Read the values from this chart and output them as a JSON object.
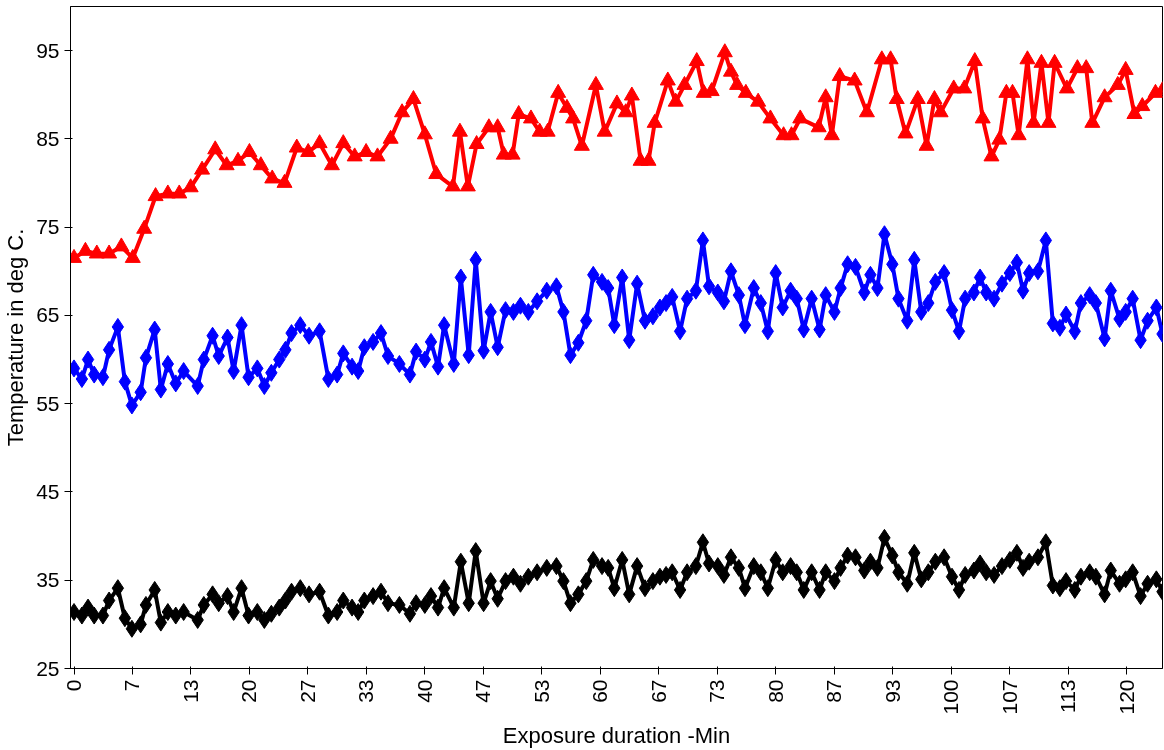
{
  "chart_data": {
    "type": "line",
    "xlabel": "Exposure duration -Min",
    "ylabel": "Temperature in deg C.",
    "xlim": [
      -0.4,
      124.1
    ],
    "ylim": [
      25,
      100
    ],
    "yticks": [
      25,
      35,
      45,
      55,
      65,
      75,
      85,
      95
    ],
    "xticks": [
      {
        "value": 0,
        "label": "0"
      },
      {
        "value": 6.667,
        "label": "7"
      },
      {
        "value": 13.333,
        "label": "13"
      },
      {
        "value": 20,
        "label": "20"
      },
      {
        "value": 26.667,
        "label": "27"
      },
      {
        "value": 33.333,
        "label": "33"
      },
      {
        "value": 40,
        "label": "40"
      },
      {
        "value": 46.667,
        "label": "47"
      },
      {
        "value": 53.333,
        "label": "53"
      },
      {
        "value": 60,
        "label": "60"
      },
      {
        "value": 66.667,
        "label": "67"
      },
      {
        "value": 73.333,
        "label": "73"
      },
      {
        "value": 80,
        "label": "80"
      },
      {
        "value": 86.667,
        "label": "87"
      },
      {
        "value": 93.333,
        "label": "93"
      },
      {
        "value": 100,
        "label": "100"
      },
      {
        "value": 106.667,
        "label": "107"
      },
      {
        "value": 113.333,
        "label": "113"
      },
      {
        "value": 120,
        "label": "120"
      }
    ],
    "grid": false,
    "line_style": "solid",
    "x": [
      0,
      0.9,
      1.6,
      2.3,
      3.3,
      4.0,
      5.0,
      5.8,
      6.6,
      7.6,
      8.2,
      9.2,
      9.9,
      10.7,
      11.6,
      12.5,
      14.1,
      14.8,
      15.8,
      16.5,
      17.5,
      18.2,
      19.1,
      19.9,
      20.9,
      21.7,
      22.5,
      23.4,
      24.1,
      24.8,
      25.8,
      26.8,
      28.0,
      29.0,
      30.0,
      30.7,
      31.7,
      32.4,
      33.1,
      34.1,
      35.0,
      35.8,
      37.1,
      38.3,
      39.0,
      40.0,
      40.7,
      41.5,
      42.2,
      43.3,
      44.1,
      45.0,
      45.8,
      46.7,
      47.5,
      48.3,
      49.2,
      50.1,
      50.9,
      51.8,
      52.8,
      53.9,
      55.0,
      55.8,
      56.6,
      57.5,
      58.4,
      59.2,
      60.2,
      60.9,
      61.6,
      62.5,
      63.3,
      64.2,
      65.1,
      66.0,
      66.8,
      67.5,
      68.2,
      69.1,
      69.9,
      70.9,
      71.7,
      72.4,
      73.4,
      74.1,
      74.9,
      75.8,
      76.5,
      77.5,
      78.3,
      79.1,
      80.0,
      80.8,
      81.7,
      82.4,
      83.2,
      84.1,
      85.0,
      85.7,
      86.7,
      87.4,
      88.2,
      89.1,
      90.1,
      90.8,
      91.6,
      92.4,
      93.3,
      94.0,
      95.0,
      95.8,
      96.6,
      97.4,
      98.2,
      99.2,
      100.1,
      100.9,
      101.6,
      102.6,
      103.3,
      104.0,
      104.9,
      105.8,
      106.7,
      107.5,
      108.2,
      108.9,
      109.9,
      110.8,
      111.6,
      112.4,
      113.1,
      114.1,
      114.8,
      115.8,
      116.5,
      117.5,
      118.2,
      119.2,
      119.9,
      120.7,
      121.6,
      122.4,
      123.4,
      124.1
    ],
    "series": [
      {
        "color": "#ff0000",
        "marker": "triangle",
        "x": [
          0,
          1.3,
          2.6,
          4.0,
          5.4,
          6.7,
          8.0,
          9.3,
          10.7,
          12.0,
          13.3,
          14.6,
          16.1,
          17.4,
          18.7,
          20.0,
          21.3,
          22.6,
          24.0,
          25.4,
          26.7,
          28.0,
          29.4,
          30.7,
          32.0,
          33.3,
          34.6,
          36.1,
          37.4,
          38.7,
          40.0,
          41.3,
          43.2,
          44.0,
          44.9,
          45.9,
          47.3,
          48.3,
          49.0,
          50.0,
          50.7,
          52.1,
          53.1,
          54.0,
          55.2,
          56.2,
          56.9,
          57.9,
          59.5,
          60.5,
          61.9,
          62.9,
          63.6,
          64.6,
          65.5,
          66.2,
          67.7,
          68.6,
          69.6,
          71.0,
          71.8,
          72.7,
          74.2,
          74.9,
          75.6,
          76.6,
          78.0,
          79.4,
          80.9,
          81.8,
          82.8,
          84.9,
          85.7,
          86.4,
          87.3,
          89.0,
          90.4,
          92.1,
          93.1,
          93.8,
          94.8,
          96.2,
          97.2,
          98.1,
          98.8,
          100.3,
          101.5,
          102.7,
          103.6,
          104.6,
          105.5,
          106.3,
          107.0,
          107.7,
          108.7,
          109.4,
          110.3,
          111.1,
          111.8,
          113.2,
          114.4,
          115.4,
          116.1,
          117.5,
          119.0,
          119.9,
          120.9,
          121.8,
          123.3,
          124.1
        ],
        "values": [
          71.5,
          72.3,
          72,
          72,
          72.8,
          71.5,
          74.8,
          78.5,
          78.8,
          78.8,
          79.5,
          81.5,
          83.8,
          82,
          82.5,
          83.5,
          82,
          80.5,
          80,
          84,
          83.5,
          84.5,
          82,
          84.5,
          83,
          83.5,
          83,
          85,
          88,
          89.5,
          85.5,
          81,
          79.6,
          85.8,
          79.6,
          84.4,
          86.3,
          86.3,
          83.2,
          83.2,
          87.8,
          87.3,
          85.8,
          85.8,
          90.2,
          88.5,
          87.3,
          84.2,
          91.1,
          85.8,
          89,
          88,
          89.9,
          82.5,
          82.5,
          86.8,
          91.6,
          89.2,
          91.1,
          93.8,
          90.2,
          90.4,
          94.8,
          92.6,
          91.1,
          90.2,
          89.2,
          87.3,
          85.4,
          85.4,
          87.3,
          86.3,
          89.7,
          85.4,
          92.1,
          91.6,
          88,
          94,
          94,
          89.5,
          85.6,
          89.5,
          84.2,
          89.5,
          88,
          90.7,
          90.7,
          93.8,
          87.3,
          83,
          84.9,
          90.2,
          90.2,
          85.4,
          94,
          86.8,
          93.6,
          86.8,
          93.6,
          90.7,
          93,
          93,
          86.8,
          89.7,
          91.1,
          92.8,
          87.8,
          88.7,
          90.2,
          90.5
        ]
      },
      {
        "color": "#0000ff",
        "marker": "diamond",
        "values": [
          59.0,
          57.8,
          60.0,
          58.3,
          58.0,
          61.1,
          63.7,
          57.5,
          54.8,
          56.3,
          60.2,
          63.4,
          56.6,
          59.5,
          57.3,
          58.7,
          57.0,
          60.0,
          62.7,
          60.4,
          62.5,
          58.7,
          63.9,
          58.0,
          59.0,
          57.0,
          58.5,
          60.0,
          61.1,
          63.0,
          63.9,
          62.7,
          63.2,
          57.8,
          58.3,
          60.7,
          59.2,
          58.7,
          61.4,
          62.0,
          63.0,
          60.4,
          59.5,
          58.3,
          60.9,
          60.0,
          62.0,
          59.2,
          63.9,
          59.5,
          69.3,
          60.5,
          71.3,
          61.0,
          65.4,
          61.4,
          65.6,
          65.4,
          66.1,
          65.4,
          66.6,
          67.8,
          68.3,
          65.4,
          60.5,
          61.9,
          64.4,
          69.6,
          68.8,
          68.1,
          63.9,
          69.3,
          62.2,
          68.6,
          64.4,
          64.9,
          65.9,
          66.4,
          67.1,
          63.2,
          66.9,
          67.8,
          73.5,
          68.3,
          67.6,
          66.6,
          70.0,
          67.3,
          63.9,
          68.1,
          66.4,
          63.2,
          69.8,
          65.9,
          67.8,
          66.9,
          63.4,
          66.9,
          63.4,
          67.3,
          65.4,
          68.1,
          70.8,
          70.5,
          67.6,
          69.6,
          68.1,
          74.2,
          70.8,
          66.9,
          64.4,
          71.3,
          65.4,
          66.4,
          68.8,
          69.8,
          65.6,
          63.2,
          66.9,
          67.6,
          69.3,
          67.6,
          66.9,
          68.6,
          69.8,
          71.0,
          67.8,
          69.8,
          70.0,
          73.5,
          64.1,
          63.6,
          65.1,
          63.2,
          66.4,
          67.3,
          66.4,
          62.4,
          67.8,
          64.6,
          65.4,
          66.9,
          62.2,
          64.4,
          65.9,
          62.9
        ]
      },
      {
        "color": "#000000",
        "marker": "diamond",
        "values": [
          31.4,
          31.0,
          31.9,
          31.0,
          31.0,
          32.7,
          34.1,
          30.7,
          29.5,
          30.0,
          32.2,
          33.9,
          30.2,
          31.4,
          31.0,
          31.4,
          30.5,
          32.2,
          33.4,
          32.4,
          33.2,
          31.4,
          34.1,
          31.0,
          31.4,
          30.5,
          31.2,
          31.9,
          32.7,
          33.7,
          34.1,
          33.4,
          33.7,
          31.0,
          31.4,
          32.7,
          31.9,
          31.4,
          32.7,
          33.2,
          33.7,
          32.4,
          32.2,
          31.2,
          32.4,
          32.2,
          33.2,
          31.9,
          34.1,
          31.9,
          37.1,
          32.4,
          38.3,
          32.4,
          34.9,
          32.9,
          34.9,
          35.4,
          34.6,
          35.4,
          35.9,
          36.4,
          36.6,
          34.9,
          32.4,
          33.4,
          34.9,
          37.3,
          36.6,
          36.4,
          34.1,
          37.3,
          33.4,
          36.6,
          34.1,
          34.9,
          35.4,
          35.6,
          35.9,
          33.9,
          35.9,
          36.6,
          39.3,
          36.9,
          36.6,
          35.6,
          37.6,
          36.4,
          34.1,
          36.6,
          35.9,
          34.1,
          37.3,
          35.9,
          36.6,
          35.9,
          33.9,
          35.9,
          33.9,
          35.9,
          34.9,
          36.4,
          37.8,
          37.6,
          36.1,
          37.1,
          36.4,
          39.8,
          37.8,
          35.9,
          34.6,
          38.1,
          35.1,
          35.9,
          37.1,
          37.6,
          35.4,
          33.9,
          35.6,
          36.1,
          36.9,
          35.9,
          35.6,
          36.6,
          37.3,
          38.1,
          36.4,
          37.1,
          37.6,
          39.3,
          34.4,
          34.1,
          34.9,
          33.9,
          35.4,
          35.9,
          35.4,
          33.4,
          36.1,
          34.6,
          35.1,
          35.9,
          33.2,
          34.6,
          35.1,
          33.7
        ]
      }
    ]
  }
}
